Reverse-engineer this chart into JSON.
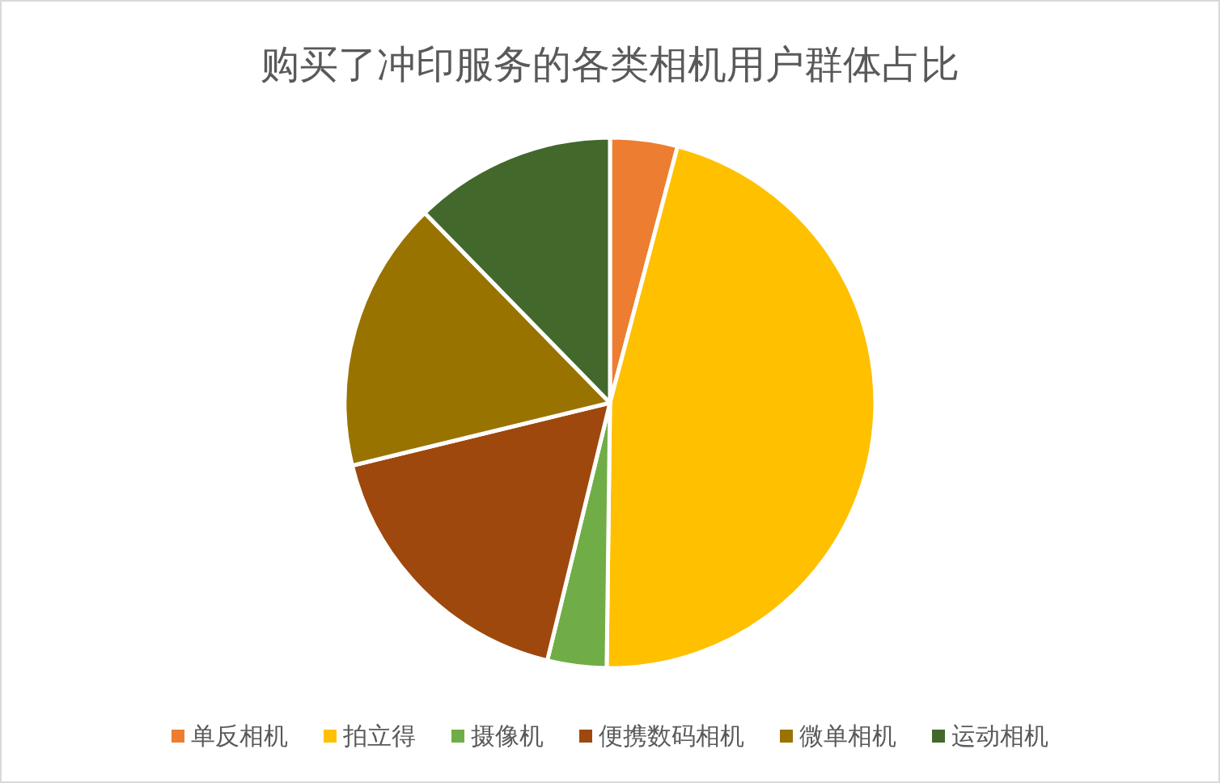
{
  "chart_data": {
    "type": "pie",
    "title": "购买了冲印服务的各类相机用户群体占比",
    "categories": [
      "单反相机",
      "拍立得",
      "摄像机",
      "便携数码相机",
      "微单相机",
      "运动相机"
    ],
    "values": [
      4.1,
      46.1,
      3.6,
      17.4,
      16.5,
      12.3
    ],
    "colors": [
      "#ed7d31",
      "#ffc000",
      "#70ad47",
      "#9e480e",
      "#997300",
      "#43682b"
    ],
    "legend": "bottom"
  }
}
